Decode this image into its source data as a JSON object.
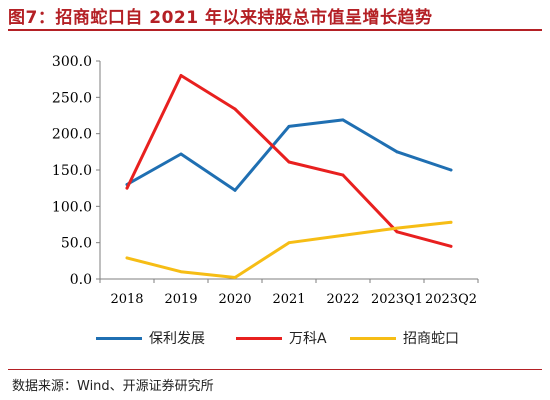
{
  "figure": {
    "title": "图7：招商蛇口自 2021 年以来持股总市值呈增长趋势",
    "source": "数据来源：Wind、开源证券研究所",
    "accent_color": "#b42025"
  },
  "chart_data": {
    "type": "line",
    "categories": [
      "2018",
      "2019",
      "2020",
      "2021",
      "2022",
      "2023Q1",
      "2023Q2"
    ],
    "ylim": [
      0,
      300
    ],
    "yticks": [
      "0.0",
      "50.0",
      "100.0",
      "150.0",
      "200.0",
      "250.0",
      "300.0"
    ],
    "grid": false,
    "legend_position": "bottom",
    "series": [
      {
        "name": "保利发展",
        "color": "#1f6fb2",
        "values": [
          130,
          172,
          122,
          210,
          219,
          175,
          150
        ]
      },
      {
        "name": "万科A",
        "color": "#e8201f",
        "values": [
          125,
          280,
          234,
          161,
          143,
          65,
          45
        ]
      },
      {
        "name": "招商蛇口",
        "color": "#f6bd15",
        "values": [
          29,
          10,
          2,
          50,
          60,
          70,
          78
        ]
      }
    ]
  }
}
